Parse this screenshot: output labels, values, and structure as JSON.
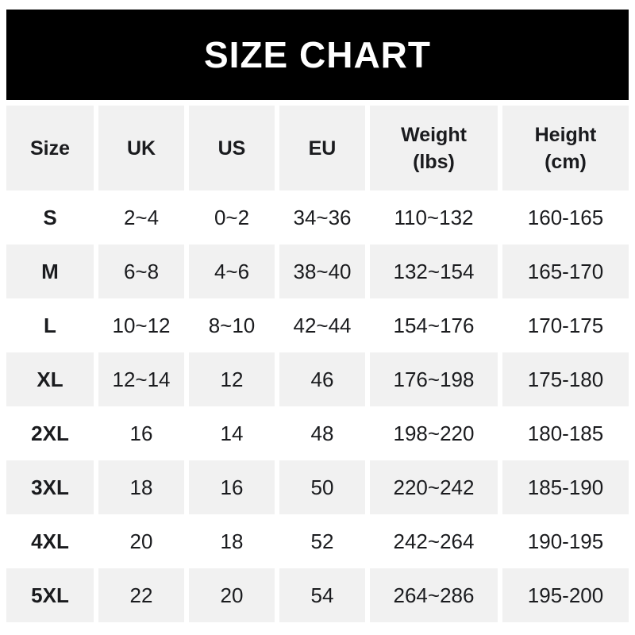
{
  "banner": {
    "title": "SIZE CHART"
  },
  "colors": {
    "banner_bg": "#000000",
    "banner_text": "#ffffff",
    "stripe_bg": "#f1f1f1",
    "text": "#1a1b1e",
    "page_bg": "#ffffff"
  },
  "header_display": [
    {
      "line1": "Size"
    },
    {
      "line1": "UK"
    },
    {
      "line1": "US"
    },
    {
      "line1": "EU"
    },
    {
      "line1": "Weight",
      "line2": "(lbs)"
    },
    {
      "line1": "Height",
      "line2": "(cm)"
    }
  ],
  "chart_data": {
    "type": "table",
    "title": "SIZE CHART",
    "columns": [
      "Size",
      "UK",
      "US",
      "EU",
      "Weight (lbs)",
      "Height (cm)"
    ],
    "rows": [
      [
        "S",
        "2~4",
        "0~2",
        "34~36",
        "110~132",
        "160-165"
      ],
      [
        "M",
        "6~8",
        "4~6",
        "38~40",
        "132~154",
        "165-170"
      ],
      [
        "L",
        "10~12",
        "8~10",
        "42~44",
        "154~176",
        "170-175"
      ],
      [
        "XL",
        "12~14",
        "12",
        "46",
        "176~198",
        "175-180"
      ],
      [
        "2XL",
        "16",
        "14",
        "48",
        "198~220",
        "180-185"
      ],
      [
        "3XL",
        "18",
        "16",
        "50",
        "220~242",
        "185-190"
      ],
      [
        "4XL",
        "20",
        "18",
        "52",
        "242~264",
        "190-195"
      ],
      [
        "5XL",
        "22",
        "20",
        "54",
        "264~286",
        "195-200"
      ]
    ],
    "layout": {
      "row_striping": "alternating white and light gray, header gray",
      "column_gutters": "white 6px vertical gaps between columns"
    }
  }
}
